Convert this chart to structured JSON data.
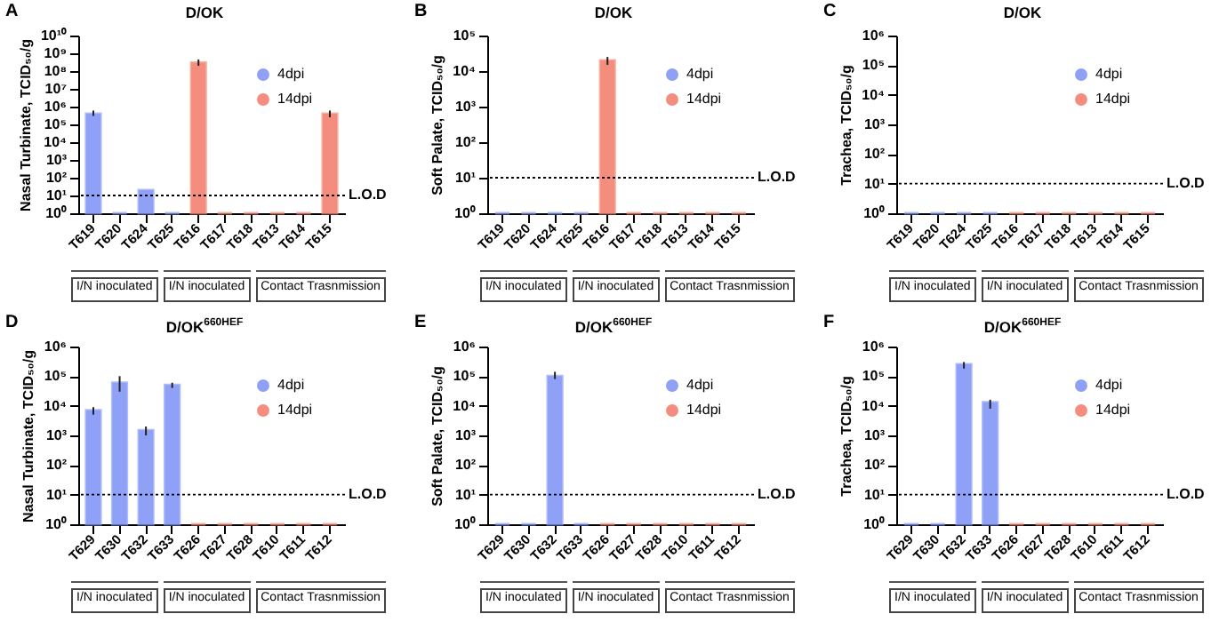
{
  "chart_data": [
    {
      "type": "bar",
      "title": "D/OK",
      "ylabel": "Nasal Turbinate, TCID₅₀/g",
      "annotations": [
        "A",
        "I/N inoculated",
        "I/N inoculated",
        "Contact Trasnmission"
      ],
      "categories": [
        "T619",
        "T620",
        "T624",
        "T625",
        "T616",
        "T617",
        "T618",
        "T613",
        "T614",
        "T615"
      ],
      "series": [
        {
          "name": "4dpi",
          "color": "#8fa0f7",
          "values": [
            400000,
            1,
            20,
            1,
            null,
            null,
            null,
            null,
            null,
            null
          ],
          "errors": [
            [
              300000,
              600000
            ],
            null,
            null,
            null,
            null,
            null,
            null,
            null,
            null,
            null
          ]
        },
        {
          "name": "14dpi",
          "color": "#f58d7e",
          "values": [
            null,
            null,
            null,
            null,
            300000000,
            1,
            1,
            1,
            1,
            400000
          ],
          "errors": [
            null,
            null,
            null,
            null,
            [
              200000000,
              450000000
            ],
            null,
            null,
            null,
            null,
            [
              250000,
              600000
            ]
          ]
        }
      ],
      "log": true,
      "ylim": [
        1,
        10000000000
      ],
      "yticks": [
        {
          "value": 1,
          "label": "10⁰"
        },
        {
          "value": 10,
          "label": "10¹"
        },
        {
          "value": 100,
          "label": "10²"
        },
        {
          "value": 1000,
          "label": "10³"
        },
        {
          "value": 10000,
          "label": "10⁴"
        },
        {
          "value": 100000,
          "label": "10⁵"
        },
        {
          "value": 1000000,
          "label": "10⁶"
        },
        {
          "value": 10000000,
          "label": "10⁷"
        },
        {
          "value": 100000000,
          "label": "10⁸"
        },
        {
          "value": 1000000000,
          "label": "10⁹"
        },
        {
          "value": 10000000000,
          "label": "10¹⁰"
        }
      ],
      "ref_lines": [
        {
          "axis": "y",
          "value": 10,
          "label": "L.O.D",
          "line_style": "dotted"
        }
      ],
      "legend": "top right"
    },
    {
      "type": "bar",
      "title": "D/OK",
      "ylabel": "Soft Palate, TCID₅₀/g",
      "annotations": [
        "B",
        "I/N inoculated",
        "I/N inoculated",
        "Contact Trasnmission"
      ],
      "categories": [
        "T619",
        "T620",
        "T624",
        "T625",
        "T616",
        "T617",
        "T618",
        "T613",
        "T614",
        "T615"
      ],
      "series": [
        {
          "name": "4dpi",
          "color": "#8fa0f7",
          "values": [
            1,
            1,
            1,
            1,
            null,
            null,
            null,
            null,
            null,
            null
          ]
        },
        {
          "name": "14dpi",
          "color": "#f58d7e",
          "values": [
            null,
            null,
            null,
            null,
            20000,
            1,
            1,
            1,
            1,
            1
          ],
          "errors": [
            null,
            null,
            null,
            null,
            [
              15000,
              25000
            ],
            null,
            null,
            null,
            null,
            null
          ]
        }
      ],
      "log": true,
      "ylim": [
        1,
        100000
      ],
      "yticks": [
        {
          "value": 1,
          "label": "10⁰"
        },
        {
          "value": 10,
          "label": "10¹"
        },
        {
          "value": 100,
          "label": "10²"
        },
        {
          "value": 1000,
          "label": "10³"
        },
        {
          "value": 10000,
          "label": "10⁴"
        },
        {
          "value": 100000,
          "label": "10⁵"
        }
      ],
      "ref_lines": [
        {
          "axis": "y",
          "value": 10,
          "label": "L.O.D",
          "line_style": "dotted"
        }
      ],
      "legend": "top right"
    },
    {
      "type": "bar",
      "title": "D/OK",
      "ylabel": "Trachea, TCID₅₀/g",
      "annotations": [
        "C",
        "I/N inoculated",
        "I/N inoculated",
        "Contact Trasnmission"
      ],
      "categories": [
        "T619",
        "T620",
        "T624",
        "T625",
        "T616",
        "T617",
        "T618",
        "T613",
        "T614",
        "T615"
      ],
      "series": [
        {
          "name": "4dpi",
          "color": "#8fa0f7",
          "values": [
            1,
            1,
            1,
            1,
            null,
            null,
            null,
            null,
            null,
            null
          ]
        },
        {
          "name": "14dpi",
          "color": "#f58d7e",
          "values": [
            null,
            null,
            null,
            null,
            1,
            1,
            1,
            1,
            1,
            1
          ]
        }
      ],
      "log": true,
      "ylim": [
        1,
        1000000
      ],
      "yticks": [
        {
          "value": 1,
          "label": "10⁰"
        },
        {
          "value": 10,
          "label": "10¹"
        },
        {
          "value": 100,
          "label": "10²"
        },
        {
          "value": 1000,
          "label": "10³"
        },
        {
          "value": 10000,
          "label": "10⁴"
        },
        {
          "value": 100000,
          "label": "10⁵"
        },
        {
          "value": 1000000,
          "label": "10⁶"
        }
      ],
      "ref_lines": [
        {
          "axis": "y",
          "value": 10,
          "label": "L.O.D",
          "line_style": "dotted"
        }
      ],
      "legend": "top right"
    },
    {
      "type": "bar",
      "title": "D/OK$^{660HEF}$",
      "ylabel": "Nasal Turbinate, TCID₅₀/g",
      "annotations": [
        "D",
        "I/N inoculated",
        "I/N inoculated",
        "Contact Trasnmission"
      ],
      "categories": [
        "T629",
        "T630",
        "T632",
        "T633",
        "T626",
        "T627",
        "T628",
        "T610",
        "T611",
        "T612"
      ],
      "series": [
        {
          "name": "4dpi",
          "color": "#8fa0f7",
          "values": [
            7000,
            60000,
            1500,
            50000,
            null,
            null,
            null,
            null,
            null,
            null
          ],
          "errors": [
            [
              5000,
              9000
            ],
            [
              30000,
              100000
            ],
            [
              1000,
              2000
            ],
            [
              40000,
              60000
            ],
            null,
            null,
            null,
            null,
            null,
            null
          ]
        },
        {
          "name": "14dpi",
          "color": "#f58d7e",
          "values": [
            null,
            null,
            null,
            null,
            1,
            1,
            1,
            1,
            1,
            1
          ]
        }
      ],
      "log": true,
      "ylim": [
        1,
        1000000
      ],
      "yticks": [
        {
          "value": 1,
          "label": "10⁰"
        },
        {
          "value": 10,
          "label": "10¹"
        },
        {
          "value": 100,
          "label": "10²"
        },
        {
          "value": 1000,
          "label": "10³"
        },
        {
          "value": 10000,
          "label": "10⁴"
        },
        {
          "value": 100000,
          "label": "10⁵"
        },
        {
          "value": 1000000,
          "label": "10⁶"
        }
      ],
      "ref_lines": [
        {
          "axis": "y",
          "value": 10,
          "label": "L.O.D",
          "line_style": "dotted"
        }
      ],
      "legend": "top right"
    },
    {
      "type": "bar",
      "title": "D/OK$^{660HEF}$",
      "ylabel": "Soft Palate, TCID₅₀/g",
      "annotations": [
        "E",
        "I/N inoculated",
        "I/N inoculated",
        "Contact Trasnmission"
      ],
      "categories": [
        "T629",
        "T630",
        "T632",
        "T633",
        "T626",
        "T627",
        "T628",
        "T610",
        "T611",
        "T612"
      ],
      "series": [
        {
          "name": "4dpi",
          "color": "#8fa0f7",
          "values": [
            1,
            1,
            100000,
            1,
            null,
            null,
            null,
            null,
            null,
            null
          ],
          "errors": [
            null,
            null,
            [
              80000,
              140000
            ],
            null,
            null,
            null,
            null,
            null,
            null,
            null
          ]
        },
        {
          "name": "14dpi",
          "color": "#f58d7e",
          "values": [
            null,
            null,
            null,
            null,
            1,
            1,
            1,
            1,
            1,
            1
          ]
        }
      ],
      "log": true,
      "ylim": [
        1,
        1000000
      ],
      "yticks": [
        {
          "value": 1,
          "label": "10⁰"
        },
        {
          "value": 10,
          "label": "10¹"
        },
        {
          "value": 100,
          "label": "10²"
        },
        {
          "value": 1000,
          "label": "10³"
        },
        {
          "value": 10000,
          "label": "10⁴"
        },
        {
          "value": 100000,
          "label": "10⁵"
        },
        {
          "value": 1000000,
          "label": "10⁶"
        }
      ],
      "ref_lines": [
        {
          "axis": "y",
          "value": 10,
          "label": "L.O.D",
          "line_style": "dotted"
        }
      ],
      "legend": "top right"
    },
    {
      "type": "bar",
      "title": "D/OK$^{660HEF}$",
      "ylabel": "Trachea, TCID₅₀/g",
      "annotations": [
        "F",
        "I/N inoculated",
        "I/N inoculated",
        "Contact Trasnmission"
      ],
      "categories": [
        "T629",
        "T630",
        "T632",
        "T633",
        "T626",
        "T627",
        "T628",
        "T610",
        "T611",
        "T612"
      ],
      "series": [
        {
          "name": "4dpi",
          "color": "#8fa0f7",
          "values": [
            1,
            1,
            250000,
            13000,
            null,
            null,
            null,
            null,
            null,
            null
          ],
          "errors": [
            null,
            null,
            [
              180000,
              300000
            ],
            [
              8000,
              16000
            ],
            null,
            null,
            null,
            null,
            null,
            null
          ]
        },
        {
          "name": "14dpi",
          "color": "#f58d7e",
          "values": [
            null,
            null,
            null,
            null,
            1,
            1,
            1,
            1,
            1,
            1
          ]
        }
      ],
      "log": true,
      "ylim": [
        1,
        1000000
      ],
      "yticks": [
        {
          "value": 1,
          "label": "10⁰"
        },
        {
          "value": 10,
          "label": "10¹"
        },
        {
          "value": 100,
          "label": "10²"
        },
        {
          "value": 1000,
          "label": "10³"
        },
        {
          "value": 10000,
          "label": "10⁴"
        },
        {
          "value": 100000,
          "label": "10⁵"
        },
        {
          "value": 1000000,
          "label": "10⁶"
        }
      ],
      "ref_lines": [
        {
          "axis": "y",
          "value": 10,
          "label": "L.O.D",
          "line_style": "dotted"
        }
      ],
      "legend": "top right"
    }
  ]
}
